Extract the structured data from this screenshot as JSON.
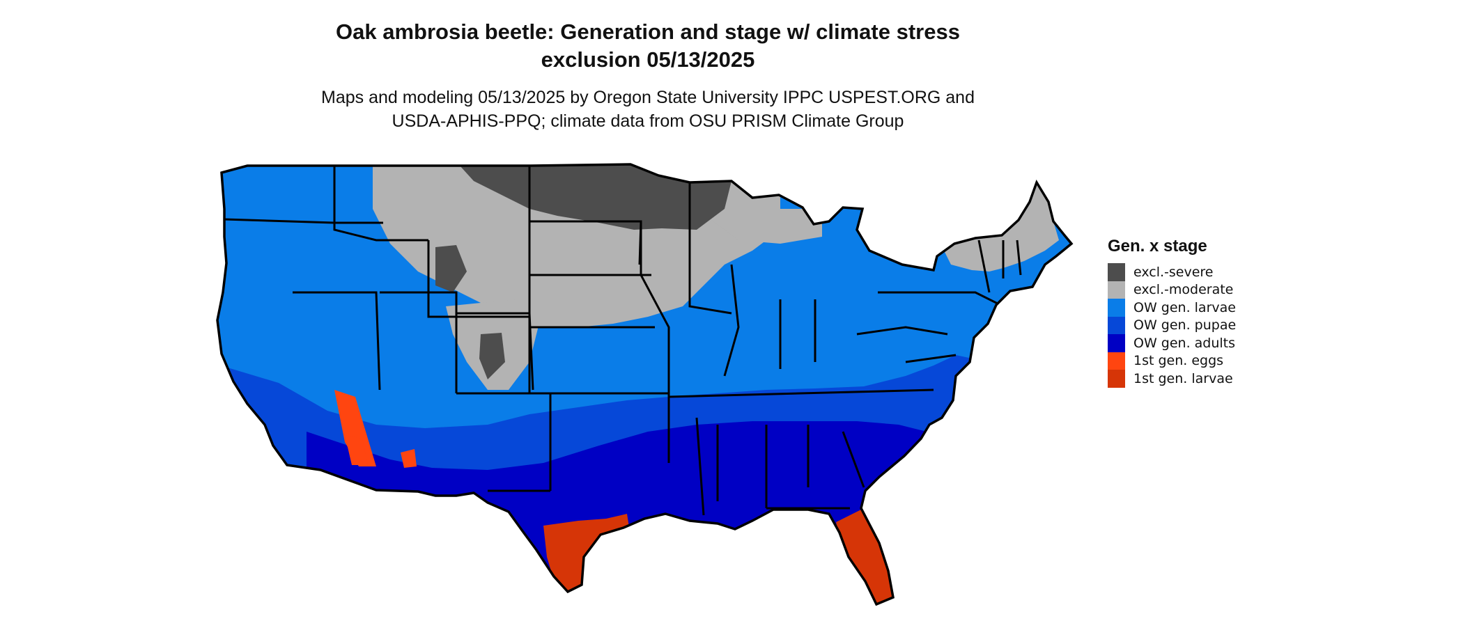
{
  "title": {
    "line1": "Oak ambrosia beetle: Generation and stage w/ climate stress",
    "line2": "exclusion 05/13/2025"
  },
  "subtitle": {
    "line1": "Maps and modeling 05/13/2025 by Oregon State University IPPC USPEST.ORG and",
    "line2": "USDA-APHIS-PPQ; climate data from OSU PRISM Climate Group"
  },
  "legend": {
    "title": "Gen. x stage",
    "items": [
      {
        "label": "excl.-severe",
        "color": "#4d4d4d"
      },
      {
        "label": "excl.-moderate",
        "color": "#b3b3b3"
      },
      {
        "label": "OW gen. larvae",
        "color": "#0a7de8"
      },
      {
        "label": "OW gen. pupae",
        "color": "#0648d8"
      },
      {
        "label": "OW gen. adults",
        "color": "#0000c4"
      },
      {
        "label": "1st gen. eggs",
        "color": "#ff4510"
      },
      {
        "label": "1st gen. larvae",
        "color": "#d63507"
      }
    ]
  },
  "map": {
    "region": "Contiguous United States",
    "zones": [
      "excl.-severe",
      "excl.-moderate",
      "OW gen. larvae",
      "OW gen. pupae",
      "OW gen. adults",
      "1st gen. eggs",
      "1st gen. larvae"
    ]
  }
}
